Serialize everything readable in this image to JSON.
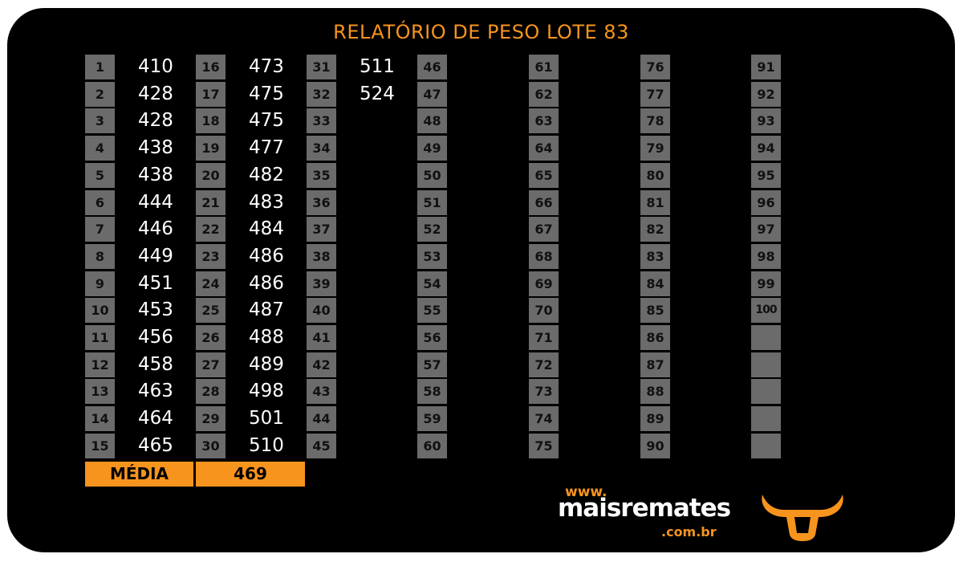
{
  "title": "RELATÓRIO DE PESO LOTE  83",
  "columns": [
    {
      "numbers": [
        "1",
        "2",
        "3",
        "4",
        "5",
        "6",
        "7",
        "8",
        "9",
        "10",
        "11",
        "12",
        "13",
        "14",
        "15"
      ],
      "weights": [
        "410",
        "428",
        "428",
        "438",
        "438",
        "444",
        "446",
        "449",
        "451",
        "453",
        "456",
        "458",
        "463",
        "464",
        "465"
      ]
    },
    {
      "numbers": [
        "16",
        "17",
        "18",
        "19",
        "20",
        "21",
        "22",
        "23",
        "24",
        "25",
        "26",
        "27",
        "28",
        "29",
        "30"
      ],
      "weights": [
        "473",
        "475",
        "475",
        "477",
        "482",
        "483",
        "484",
        "486",
        "486",
        "487",
        "488",
        "489",
        "498",
        "501",
        "510"
      ]
    },
    {
      "numbers": [
        "31",
        "32",
        "33",
        "34",
        "35",
        "36",
        "37",
        "38",
        "39",
        "40",
        "41",
        "42",
        "43",
        "44",
        "45"
      ],
      "weights": [
        "511",
        "524"
      ]
    },
    {
      "numbers": [
        "46",
        "47",
        "48",
        "49",
        "50",
        "51",
        "52",
        "53",
        "54",
        "55",
        "56",
        "57",
        "58",
        "59",
        "60"
      ],
      "weights": []
    },
    {
      "numbers": [
        "61",
        "62",
        "63",
        "64",
        "65",
        "66",
        "67",
        "68",
        "69",
        "70",
        "71",
        "72",
        "73",
        "74",
        "75"
      ],
      "weights": []
    },
    {
      "numbers": [
        "76",
        "77",
        "78",
        "79",
        "80",
        "81",
        "82",
        "83",
        "84",
        "85",
        "86",
        "87",
        "88",
        "89",
        "90"
      ],
      "weights": []
    },
    {
      "numbers": [
        "91",
        "92",
        "93",
        "94",
        "95",
        "96",
        "97",
        "98",
        "99",
        "100",
        "",
        "",
        "",
        "",
        ""
      ],
      "weights": []
    }
  ],
  "average": {
    "label": "MÉDIA",
    "value": "469"
  },
  "logo": {
    "www": "www.",
    "name": "maisremates",
    "domain": ".com.br"
  },
  "colors": {
    "background": "#000000",
    "accent": "#f7941d",
    "cell": "#6b6b6b",
    "text": "#ffffff"
  },
  "icons": {
    "brand": "bull-head-icon"
  }
}
